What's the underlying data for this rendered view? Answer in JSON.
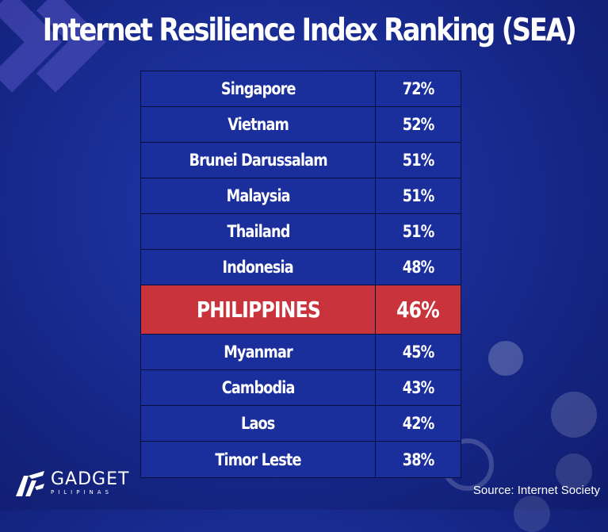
{
  "title": "Internet Resilience Index Ranking (SEA)",
  "chart_data": {
    "type": "table",
    "title": "Internet Resilience Index Ranking (SEA)",
    "categories": [
      "Singapore",
      "Vietnam",
      "Brunei Darussalam",
      "Malaysia",
      "Thailand",
      "Indonesia",
      "PHILIPPINES",
      "Myanmar",
      "Cambodia",
      "Laos",
      "Timor Leste"
    ],
    "values": [
      72,
      52,
      51,
      51,
      51,
      48,
      46,
      45,
      43,
      42,
      38
    ],
    "value_labels": [
      "72%",
      "52%",
      "51%",
      "51%",
      "51%",
      "48%",
      "46%",
      "45%",
      "43%",
      "42%",
      "38%"
    ],
    "highlighted": "PHILIPPINES",
    "highlight_color": "#c9343c",
    "row_color": "#1a2f9c"
  },
  "logo": {
    "main": "GADGET",
    "sub": "PILIPINAS"
  },
  "source": "Source: Internet Society"
}
